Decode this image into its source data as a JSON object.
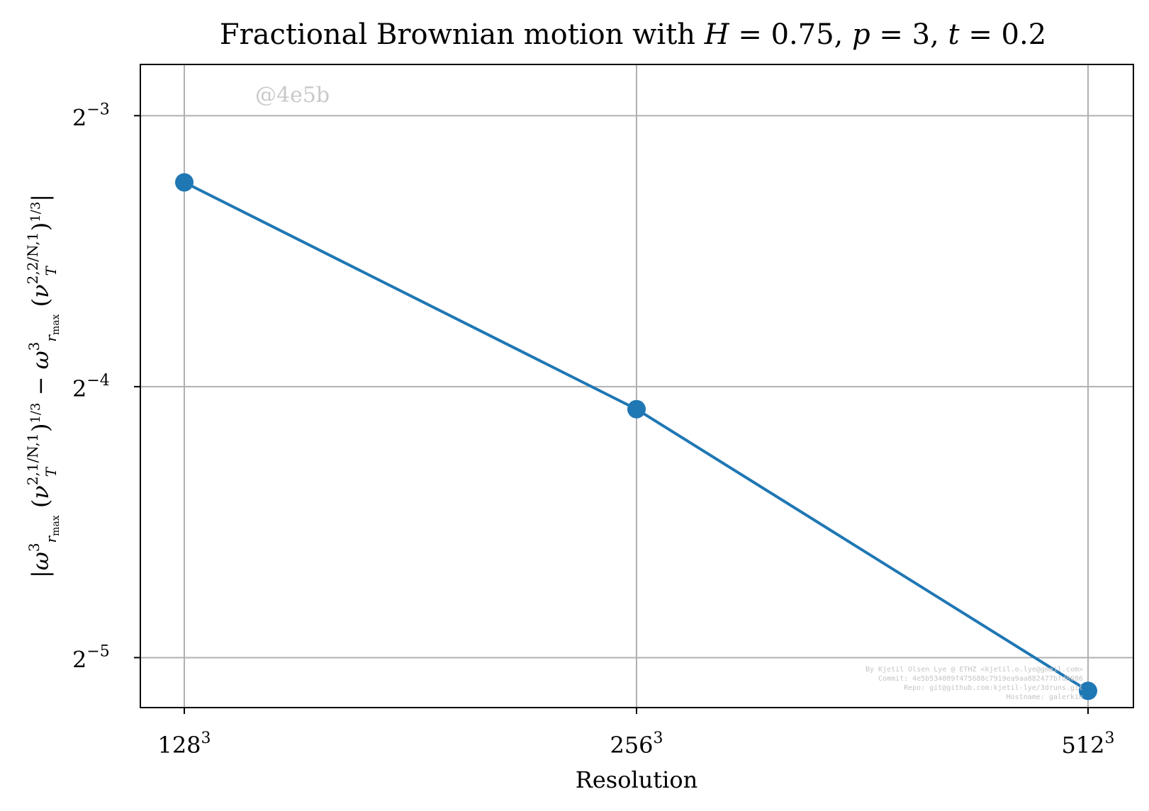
{
  "chart_data": {
    "type": "line",
    "title": "Fractional Brownian motion with H = 0.75, p = 3, t = 0.2",
    "xlabel": "Resolution",
    "ylabel": "|ω³_rmax(ν_T^{2,1/N,1})^{1/3} − ω³_rmax(ν_T^{2,2/N,1})^{1/3}|",
    "x_scale": "log2",
    "y_scale": "log2",
    "categories": [
      "128^3",
      "256^3",
      "512^3"
    ],
    "x_tick_labels": [
      {
        "base": "128",
        "exp": "3"
      },
      {
        "base": "256",
        "exp": "3"
      },
      {
        "base": "512",
        "exp": "3"
      }
    ],
    "y_ticks": [
      {
        "base": "2",
        "exp": "−3",
        "value": 0.125
      },
      {
        "base": "2",
        "exp": "−4",
        "value": 0.0625
      },
      {
        "base": "2",
        "exp": "−5",
        "value": 0.03125
      }
    ],
    "ylim": [
      0.0275,
      0.1425
    ],
    "series": [
      {
        "values": [
          0.1054,
          0.059,
          0.0287
        ],
        "color": "#1f77b4",
        "marker": "circle"
      }
    ],
    "grid": true,
    "watermark": "@4e5b",
    "credits": [
      "By Kjetil Olsen Lye @ ETHZ <kjetil.o.lye@gmail.com>",
      "Commit: 4e5b534089f475688c7919ea9aa882477bfd8086",
      "Repo: git@github.com:kjetil-lye/3druns.git",
      "Hostname: galerkin"
    ]
  }
}
